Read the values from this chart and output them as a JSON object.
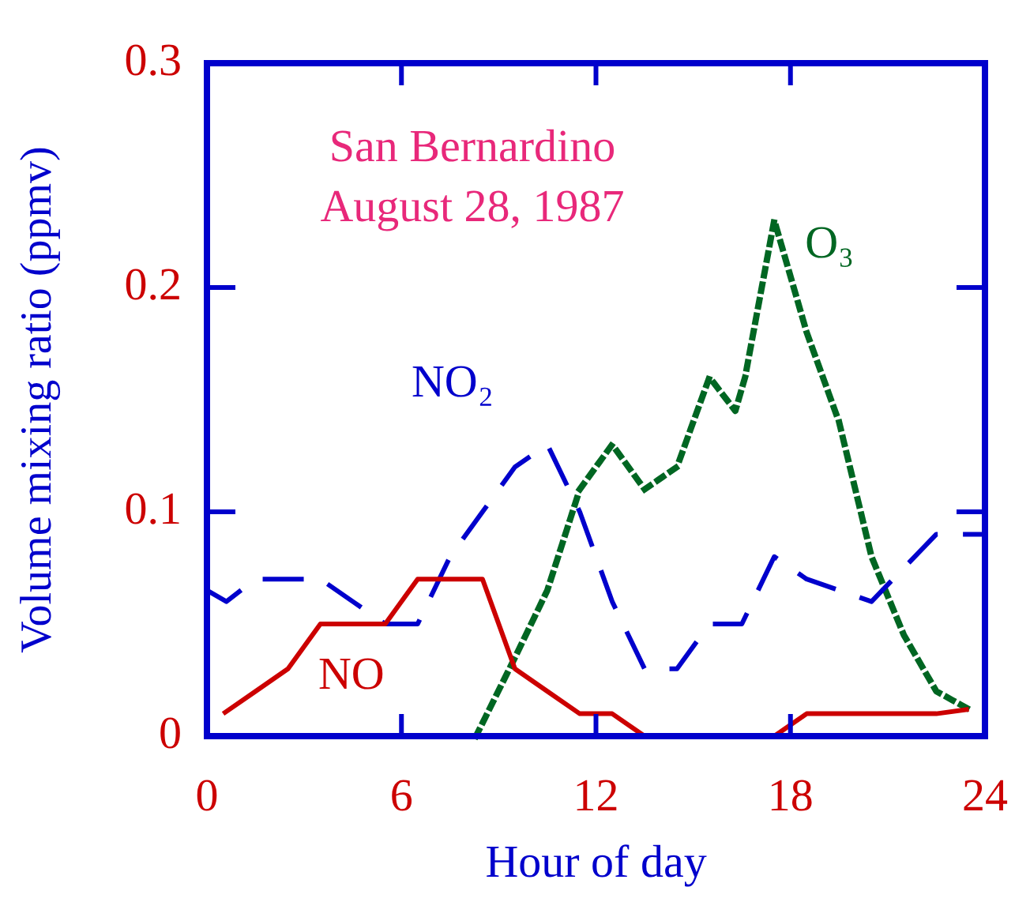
{
  "chart_data": {
    "type": "line",
    "title": "San Bernardino",
    "subtitle": "August 28, 1987",
    "xlabel": "Hour of day",
    "ylabel": "Volume mixing ratio (ppmv)",
    "xlim": [
      0,
      24
    ],
    "xticks": [
      0,
      6,
      12,
      18,
      24
    ],
    "ylim": [
      0,
      0.3
    ],
    "yticks": [
      0,
      0.1,
      0.2,
      0.3
    ],
    "series": [
      {
        "name": "NO",
        "color": "#cc0000",
        "line_style": "solid",
        "x": [
          0.5,
          1.5,
          2.5,
          3.5,
          4.5,
          5.5,
          6.5,
          7.5,
          8.5,
          9.5,
          10.5,
          11.5,
          12.5,
          13.5,
          14.5,
          15.5,
          16.5,
          17.5,
          18.5,
          19.5,
          20.5,
          21.5,
          22.5,
          23.5
        ],
        "values": [
          0.01,
          0.02,
          0.03,
          0.05,
          0.05,
          0.05,
          0.07,
          0.07,
          0.07,
          0.03,
          0.02,
          0.01,
          0.01,
          0,
          null,
          null,
          null,
          0,
          0.01,
          0.01,
          0.01,
          0.01,
          0.01,
          0.012
        ]
      },
      {
        "name": "NO₂",
        "color": "#0000cc",
        "line_style": "dashed",
        "x": [
          0,
          0.6,
          1.5,
          2.5,
          3.5,
          4.5,
          5.5,
          6.5,
          7.5,
          8.5,
          9.5,
          10.5,
          11.5,
          12.5,
          13.5,
          14.5,
          15.5,
          16.5,
          17.5,
          18.5,
          19.5,
          20.5,
          21.5,
          22.5,
          23.5,
          24
        ],
        "values": [
          0.065,
          0.06,
          0.07,
          0.07,
          0.07,
          0.06,
          0.05,
          0.05,
          0.08,
          0.1,
          0.12,
          0.13,
          0.1,
          0.06,
          0.03,
          0.03,
          0.05,
          0.05,
          0.08,
          0.07,
          0.065,
          0.06,
          0.075,
          0.09,
          0.09,
          0.09
        ]
      },
      {
        "name": "O₃",
        "color": "#006622",
        "line_style": "dotted",
        "x": [
          8.3,
          9.5,
          10.5,
          11.5,
          12.5,
          13.5,
          14.5,
          15.5,
          16.3,
          16.6,
          17.5,
          18.5,
          19.5,
          20.5,
          21.5,
          22.5,
          23.5
        ],
        "values": [
          0,
          0.035,
          0.065,
          0.11,
          0.13,
          0.11,
          0.12,
          0.16,
          0.145,
          0.16,
          0.23,
          0.18,
          0.14,
          0.08,
          0.045,
          0.02,
          0.012
        ]
      }
    ]
  }
}
